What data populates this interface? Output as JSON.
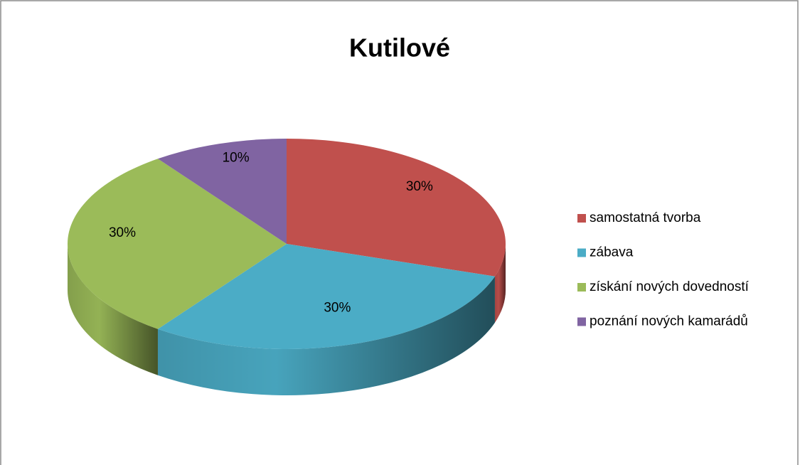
{
  "chart_data": {
    "type": "pie",
    "title": "Kutilové",
    "categories": [
      "samostatná tvorba",
      "zábava",
      "získání nových dovedností",
      "poznání nových kamarádů"
    ],
    "values": [
      30,
      30,
      30,
      10
    ],
    "value_labels": [
      "30%",
      "30%",
      "30%",
      "10%"
    ],
    "colors": [
      "#c0504d",
      "#4bacc6",
      "#9bbb59",
      "#8064a2"
    ],
    "legend": "right"
  }
}
